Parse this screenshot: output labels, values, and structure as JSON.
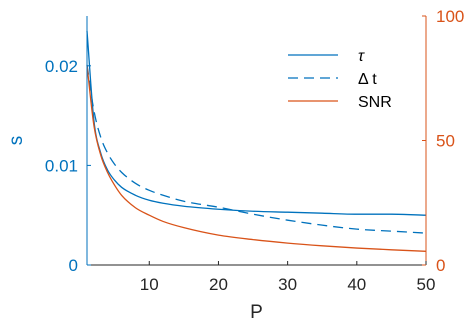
{
  "chart_data": {
    "type": "line",
    "xlabel": "P",
    "ylabel_left": "s",
    "ylabel_right": "",
    "xlim": [
      1,
      50
    ],
    "ylim_left": [
      0,
      0.025
    ],
    "ylim_right": [
      0,
      100
    ],
    "xticks": [
      10,
      20,
      30,
      40,
      50
    ],
    "xtick_labels": [
      "10",
      "20",
      "30",
      "40",
      "50"
    ],
    "yticks_left": [
      0,
      0.01,
      0.02
    ],
    "ytick_labels_left": [
      "0",
      "0.01",
      "0.02"
    ],
    "yticks_right": [
      0,
      50,
      100
    ],
    "ytick_labels_right": [
      "0",
      "50",
      "100"
    ],
    "grid": false,
    "legend_position": "top-right",
    "colors": {
      "left_axis": "#0072BD",
      "right_axis": "#D95319",
      "frame": "#262626"
    },
    "series": [
      {
        "name": "τ",
        "axis": "left",
        "style": "solid",
        "color": "#0072BD",
        "x": [
          1,
          2,
          3,
          4,
          5,
          6,
          8,
          10,
          12,
          15,
          20,
          25,
          30,
          35,
          40,
          45,
          50
        ],
        "y": [
          0.0235,
          0.0145,
          0.0112,
          0.0095,
          0.0085,
          0.0078,
          0.007,
          0.0065,
          0.0062,
          0.0059,
          0.0056,
          0.0054,
          0.0053,
          0.0052,
          0.0051,
          0.0051,
          0.005
        ]
      },
      {
        "name": "Δ t",
        "axis": "left",
        "style": "dashed",
        "color": "#0072BD",
        "x": [
          1,
          2,
          3,
          4,
          5,
          6,
          8,
          10,
          12,
          15,
          20,
          25,
          30,
          35,
          40,
          45,
          50
        ],
        "y": [
          0.0201,
          0.0155,
          0.0128,
          0.0112,
          0.0101,
          0.0093,
          0.0082,
          0.0075,
          0.007,
          0.0064,
          0.0058,
          0.0051,
          0.0045,
          0.004,
          0.0036,
          0.0034,
          0.0032
        ]
      },
      {
        "name": "SNR",
        "axis": "right",
        "style": "solid",
        "color": "#D95319",
        "x": [
          1,
          2,
          3,
          4,
          5,
          6,
          8,
          10,
          12,
          15,
          20,
          25,
          30,
          35,
          40,
          45,
          50
        ],
        "y": [
          80.2,
          56,
          44,
          37,
          32,
          28,
          23,
          20,
          17.5,
          15,
          12,
          10.2,
          8.8,
          7.7,
          6.8,
          6.1,
          5.5
        ]
      }
    ]
  }
}
